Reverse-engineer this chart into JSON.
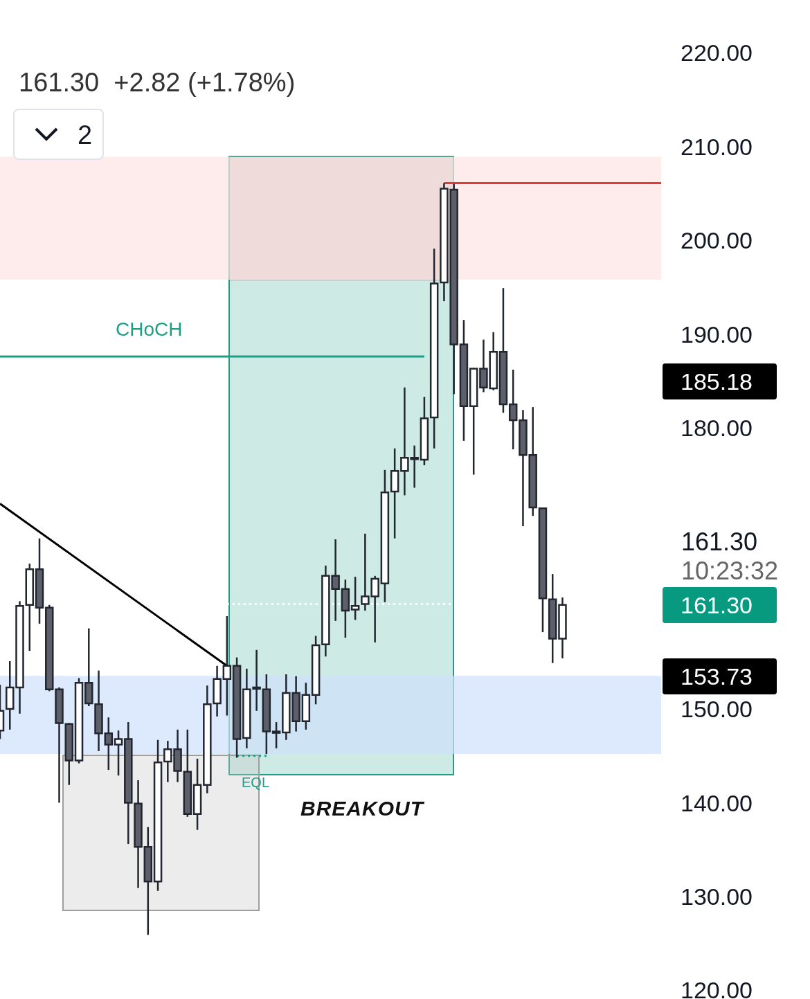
{
  "chart_data": {
    "type": "candlestick",
    "subtitle": "161.30  +2.82 (+1.78%)",
    "categories": [
      null,
      null,
      null,
      null,
      null,
      null,
      null,
      null,
      null,
      null,
      null,
      null,
      null,
      null,
      null,
      null,
      null,
      null,
      null,
      null,
      null,
      null,
      null,
      null,
      null,
      null,
      null,
      null,
      null,
      null,
      null,
      null,
      null,
      null,
      null,
      null,
      null,
      null,
      null,
      null,
      null,
      null,
      null,
      null,
      null,
      null,
      null,
      null,
      null,
      null,
      null,
      null,
      null,
      null,
      null,
      null,
      null,
      null,
      null,
      null,
      null,
      null,
      null,
      null,
      null,
      null,
      null,
      null
    ],
    "series": [
      {
        "ohlc": [
          [
            147.9,
            152.8,
            147.0,
            150.0
          ],
          [
            150.2,
            155.3,
            148.0,
            152.5
          ],
          [
            152.5,
            161.7,
            149.7,
            161.2
          ],
          [
            161.3,
            165.7,
            156.4,
            165.1
          ],
          [
            165.1,
            168.4,
            159.3,
            161.0
          ],
          [
            161.0,
            161.3,
            152.1,
            152.3
          ],
          [
            152.3,
            152.5,
            140.2,
            148.7
          ],
          [
            148.6,
            148.7,
            142.1,
            144.7
          ],
          [
            144.7,
            153.5,
            144.4,
            153.0
          ],
          [
            153.0,
            158.8,
            150.5,
            150.8
          ],
          [
            150.7,
            154.3,
            145.7,
            147.6
          ],
          [
            147.6,
            149.3,
            143.7,
            146.4
          ],
          [
            146.4,
            147.9,
            143.1,
            147.0
          ],
          [
            147.0,
            148.8,
            135.8,
            140.2
          ],
          [
            140.1,
            142.6,
            131.1,
            135.5
          ],
          [
            135.5,
            137.6,
            126.1,
            131.8
          ],
          [
            131.8,
            146.9,
            130.8,
            144.5
          ],
          [
            144.6,
            146.8,
            142.4,
            145.9
          ],
          [
            145.9,
            148.0,
            142.4,
            143.6
          ],
          [
            143.5,
            148.0,
            138.7,
            139.0
          ],
          [
            139.0,
            144.9,
            137.3,
            142.1
          ],
          [
            142.1,
            152.7,
            141.2,
            150.7
          ],
          [
            150.8,
            154.8,
            149.4,
            153.4
          ],
          [
            153.4,
            160.1,
            149.5,
            154.8
          ],
          [
            154.8,
            155.7,
            145.0,
            147.0
          ],
          [
            147.1,
            154.5,
            146.0,
            152.3
          ],
          [
            152.5,
            156.5,
            150.0,
            152.4
          ],
          [
            152.3,
            153.9,
            145.4,
            147.8
          ],
          [
            147.8,
            148.8,
            146.0,
            147.7
          ],
          [
            147.7,
            153.9,
            146.9,
            151.9
          ],
          [
            151.9,
            153.7,
            147.8,
            148.9
          ],
          [
            148.9,
            153.0,
            148.0,
            151.7
          ],
          [
            151.7,
            158.0,
            150.7,
            157.0
          ],
          [
            157.1,
            165.5,
            155.8,
            164.4
          ],
          [
            164.4,
            168.3,
            159.6,
            163.0
          ],
          [
            163.0,
            164.0,
            157.8,
            160.7
          ],
          [
            160.8,
            164.3,
            159.7,
            161.2
          ],
          [
            161.4,
            168.9,
            160.7,
            162.2
          ],
          [
            162.2,
            164.4,
            157.3,
            164.1
          ],
          [
            163.6,
            175.7,
            161.6,
            173.3
          ],
          [
            173.4,
            178.0,
            168.4,
            175.6
          ],
          [
            175.6,
            184.5,
            173.0,
            177.0
          ],
          [
            176.9,
            178.3,
            173.8,
            177.0
          ],
          [
            176.8,
            183.5,
            176.2,
            181.2
          ],
          [
            181.3,
            199.3,
            178.0,
            195.6
          ],
          [
            195.7,
            206.3,
            193.7,
            205.7
          ],
          [
            205.6,
            206.2,
            183.8,
            189.1
          ],
          [
            189.1,
            191.7,
            178.8,
            182.5
          ],
          [
            182.5,
            186.6,
            175.2,
            186.5
          ],
          [
            186.5,
            189.6,
            184.0,
            184.5
          ],
          [
            184.4,
            190.4,
            184.2,
            188.3
          ],
          [
            188.3,
            195.1,
            181.8,
            182.7
          ],
          [
            182.7,
            186.4,
            177.9,
            181.0
          ],
          [
            181.0,
            182.1,
            169.7,
            177.3
          ],
          [
            177.3,
            182.4,
            170.8,
            171.7
          ],
          [
            171.6,
            171.6,
            158.4,
            162.0
          ],
          [
            161.9,
            164.6,
            155.1,
            157.7
          ],
          [
            157.7,
            162.1,
            155.6,
            161.3
          ],
          null,
          null,
          null,
          null,
          null,
          null,
          null,
          null,
          null,
          null
        ]
      },
      {
        "type": "line",
        "color": "#000000",
        "values": [
          172.1,
          null,
          null,
          null,
          null,
          null,
          null,
          null,
          null,
          null,
          null,
          null,
          null,
          null,
          null,
          null,
          null,
          null,
          null,
          null,
          null,
          null,
          null,
          154.8,
          null,
          null,
          null,
          null,
          null,
          null,
          null,
          null,
          null,
          null,
          null,
          null,
          null,
          null,
          null,
          null,
          null,
          null,
          null,
          null,
          null,
          null,
          null,
          null,
          null,
          null,
          null,
          null,
          null,
          null,
          null,
          null,
          null,
          null,
          null,
          null,
          null,
          null,
          null,
          null,
          null,
          null,
          null,
          null
        ]
      },
      {
        "type": "line",
        "color": "#1e9e85",
        "values": [
          187.8,
          null,
          null,
          null,
          null,
          null,
          null,
          null,
          null,
          null,
          null,
          null,
          null,
          null,
          null,
          null,
          null,
          null,
          null,
          null,
          null,
          null,
          null,
          null,
          null,
          null,
          null,
          null,
          null,
          null,
          null,
          null,
          null,
          null,
          null,
          null,
          null,
          null,
          null,
          null,
          null,
          null,
          null,
          187.8,
          null,
          null,
          null,
          null,
          null,
          null,
          null,
          null,
          null,
          null,
          null,
          null,
          null,
          null,
          null,
          null,
          null,
          null,
          null,
          null,
          null,
          null,
          null,
          null
        ]
      },
      {
        "type": "line",
        "color": "#e53935",
        "values": [
          null,
          null,
          null,
          null,
          null,
          null,
          null,
          null,
          null,
          null,
          null,
          null,
          null,
          null,
          null,
          null,
          null,
          null,
          null,
          null,
          null,
          null,
          null,
          null,
          null,
          null,
          null,
          null,
          null,
          null,
          null,
          null,
          null,
          null,
          null,
          null,
          null,
          null,
          null,
          null,
          null,
          null,
          null,
          null,
          null,
          206.3,
          null,
          null,
          null,
          null,
          null,
          null,
          null,
          null,
          null,
          null,
          null,
          null,
          null,
          null,
          null,
          null,
          null,
          null,
          null,
          null,
          null,
          206.3
        ]
      },
      {
        "type": "line",
        "color": "#ffffff",
        "line_style": "dotted",
        "values": [
          null,
          null,
          null,
          null,
          null,
          null,
          null,
          null,
          null,
          null,
          null,
          null,
          null,
          null,
          null,
          null,
          null,
          null,
          null,
          null,
          null,
          null,
          null,
          161.4,
          null,
          null,
          null,
          null,
          null,
          null,
          null,
          null,
          null,
          null,
          null,
          null,
          null,
          null,
          null,
          null,
          null,
          null,
          null,
          null,
          null,
          null,
          161.4,
          null,
          null,
          null,
          null,
          null,
          null,
          null,
          null,
          null,
          null,
          null,
          null,
          null,
          null,
          null,
          null,
          null,
          null,
          null,
          null,
          null
        ]
      },
      {
        "type": "line",
        "color": "#1e9e85",
        "line_style": "dotted",
        "values": [
          null,
          null,
          null,
          null,
          null,
          null,
          null,
          null,
          null,
          null,
          null,
          null,
          null,
          null,
          null,
          null,
          null,
          null,
          null,
          null,
          null,
          null,
          null,
          null,
          145.2,
          null,
          null,
          145.2,
          null,
          null,
          null,
          null,
          null,
          null,
          null,
          null,
          null,
          null,
          null,
          null,
          null,
          null,
          null,
          null,
          null,
          null,
          null,
          null,
          null,
          null,
          null,
          null,
          null,
          null,
          null,
          null,
          null,
          null,
          null,
          null,
          null,
          null,
          null,
          null,
          null,
          null,
          null,
          null
        ]
      }
    ],
    "ylim": [
      120,
      220
    ],
    "yticks": [
      {
        "value": 120,
        "label": "120.00"
      },
      {
        "value": 130,
        "label": "130.00"
      },
      {
        "value": 140,
        "label": "140.00"
      },
      {
        "value": 150,
        "label": "150.00"
      },
      {
        "value": 180,
        "label": "180.00"
      },
      {
        "value": 190,
        "label": "190.00"
      },
      {
        "value": 200,
        "label": "200.00"
      },
      {
        "value": 210,
        "label": "210.00"
      },
      {
        "value": 220,
        "label": "220.00"
      }
    ],
    "bands": [
      {
        "axis": "y",
        "from": 196.0,
        "to": 209.1,
        "color": "#fde2e2"
      },
      {
        "axis": "y",
        "from": 145.4,
        "to": 153.73,
        "color": "#cfe0fb"
      }
    ],
    "annotations": [
      "CHoCH",
      "EQL",
      "BREAKOUT",
      "2",
      "161.30",
      "10:23:32",
      "185.18",
      "153.73",
      "161.30"
    ],
    "tick_labels": "y",
    "grid": false,
    "legend": false
  }
}
